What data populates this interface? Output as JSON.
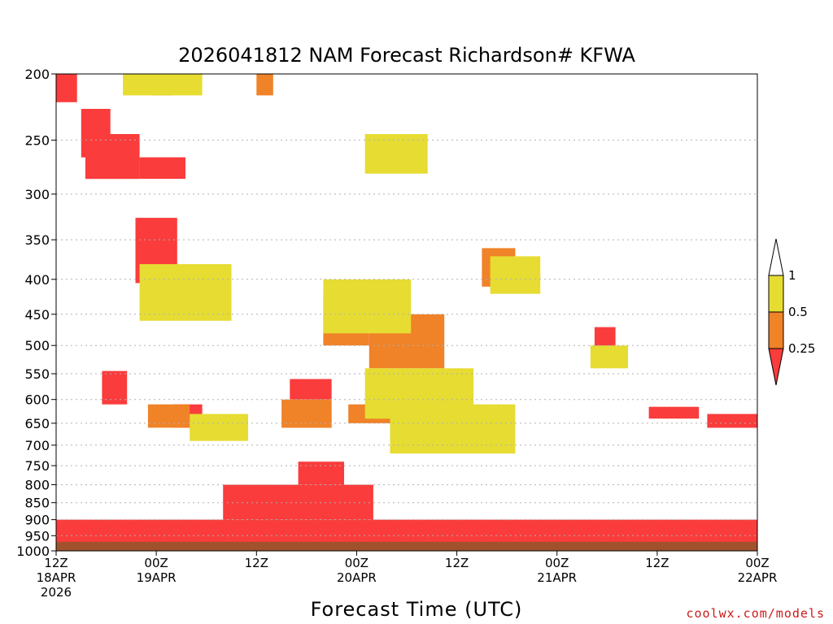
{
  "chart_data": {
    "type": "heatmap",
    "title": "2026041812 NAM Forecast Richardson# KFWA",
    "xlabel": "Forecast Time (UTC)",
    "ylabel": "",
    "y_axis": {
      "scale": "log",
      "inverted": true,
      "range": [
        1000,
        200
      ],
      "ticks": [
        200,
        250,
        300,
        350,
        400,
        450,
        500,
        550,
        600,
        650,
        700,
        750,
        800,
        850,
        900,
        950,
        1000
      ]
    },
    "x_axis": {
      "range": [
        0,
        84
      ],
      "ticks": [
        {
          "hour": 0,
          "labels": [
            "12Z",
            "18APR",
            "2026"
          ]
        },
        {
          "hour": 12,
          "labels": [
            "00Z",
            "19APR"
          ]
        },
        {
          "hour": 24,
          "labels": [
            "12Z"
          ]
        },
        {
          "hour": 36,
          "labels": [
            "00Z",
            "20APR"
          ]
        },
        {
          "hour": 48,
          "labels": [
            "12Z"
          ]
        },
        {
          "hour": 60,
          "labels": [
            "00Z",
            "21APR"
          ]
        },
        {
          "hour": 72,
          "labels": [
            "12Z"
          ]
        },
        {
          "hour": 84,
          "labels": [
            "00Z",
            "22APR"
          ]
        }
      ]
    },
    "grid": true,
    "colorbar": {
      "levels": [
        "1",
        "0.5",
        "0.25"
      ],
      "colors": {
        "above_1": "#ffffff",
        "0.5_to_1": "#e6dc32",
        "0.25_to_0.5": "#f08228",
        "below_0.25": "#fa3c3c"
      }
    },
    "ground_color": "#a0522d",
    "ground_top_hpa": 970,
    "regions": [
      {
        "class": "below_0.25",
        "x": [
          0.0,
          2.5
        ],
        "p": [
          200,
          220
        ]
      },
      {
        "class": "below_0.25",
        "x": [
          3.0,
          6.5
        ],
        "p": [
          225,
          265
        ]
      },
      {
        "class": "below_0.25",
        "x": [
          3.5,
          10.0
        ],
        "p": [
          245,
          285
        ]
      },
      {
        "class": "below_0.25",
        "x": [
          10.0,
          15.5
        ],
        "p": [
          265,
          285
        ]
      },
      {
        "class": "below_0.25",
        "x": [
          9.5,
          14.5
        ],
        "p": [
          325,
          405
        ]
      },
      {
        "class": "below_0.25",
        "x": [
          5.5,
          8.5
        ],
        "p": [
          545,
          610
        ]
      },
      {
        "class": "below_0.25",
        "x": [
          14.0,
          17.5
        ],
        "p": [
          610,
          660
        ]
      },
      {
        "class": "below_0.25",
        "x": [
          28.0,
          33.0
        ],
        "p": [
          560,
          600
        ]
      },
      {
        "class": "below_0.25",
        "x": [
          29.0,
          34.5
        ],
        "p": [
          740,
          800
        ]
      },
      {
        "class": "below_0.25",
        "x": [
          35.0,
          38.5
        ],
        "p": [
          440,
          475
        ]
      },
      {
        "class": "below_0.25",
        "x": [
          64.5,
          67.0
        ],
        "p": [
          470,
          505
        ]
      },
      {
        "class": "below_0.25",
        "x": [
          71.0,
          77.0
        ],
        "p": [
          615,
          640
        ]
      },
      {
        "class": "below_0.25",
        "x": [
          78.0,
          84.0
        ],
        "p": [
          630,
          660
        ]
      },
      {
        "class": "below_0.25",
        "x": [
          0.0,
          84.0
        ],
        "p": [
          900,
          975
        ]
      },
      {
        "class": "below_0.25",
        "x": [
          20.0,
          38.0
        ],
        "p": [
          800,
          900
        ]
      },
      {
        "class": "0.25_to_0.5",
        "x": [
          11.5,
          14.0
        ],
        "p": [
          200,
          215
        ]
      },
      {
        "class": "0.25_to_0.5",
        "x": [
          24.0,
          26.0
        ],
        "p": [
          200,
          215
        ]
      },
      {
        "class": "0.25_to_0.5",
        "x": [
          39.5,
          42.0
        ],
        "p": [
          255,
          270
        ]
      },
      {
        "class": "0.25_to_0.5",
        "x": [
          32.0,
          37.5
        ],
        "p": [
          420,
          500
        ]
      },
      {
        "class": "0.25_to_0.5",
        "x": [
          37.5,
          46.5
        ],
        "p": [
          450,
          540
        ]
      },
      {
        "class": "0.25_to_0.5",
        "x": [
          51.0,
          55.0
        ],
        "p": [
          360,
          410
        ]
      },
      {
        "class": "0.25_to_0.5",
        "x": [
          11.0,
          16.0
        ],
        "p": [
          610,
          660
        ]
      },
      {
        "class": "0.25_to_0.5",
        "x": [
          27.0,
          33.0
        ],
        "p": [
          600,
          660
        ]
      },
      {
        "class": "0.25_to_0.5",
        "x": [
          35.0,
          41.0
        ],
        "p": [
          610,
          650
        ]
      },
      {
        "class": "0.5_to_1",
        "x": [
          8.0,
          17.5
        ],
        "p": [
          200,
          215
        ]
      },
      {
        "class": "0.5_to_1",
        "x": [
          37.0,
          44.5
        ],
        "p": [
          245,
          280
        ]
      },
      {
        "class": "0.5_to_1",
        "x": [
          32.0,
          42.5
        ],
        "p": [
          400,
          480
        ]
      },
      {
        "class": "0.5_to_1",
        "x": [
          37.0,
          50.0
        ],
        "p": [
          540,
          640
        ]
      },
      {
        "class": "0.5_to_1",
        "x": [
          40.0,
          55.0
        ],
        "p": [
          610,
          720
        ]
      },
      {
        "class": "0.5_to_1",
        "x": [
          10.0,
          21.0
        ],
        "p": [
          380,
          460
        ]
      },
      {
        "class": "0.5_to_1",
        "x": [
          16.0,
          23.0
        ],
        "p": [
          630,
          690
        ]
      },
      {
        "class": "0.5_to_1",
        "x": [
          52.0,
          58.0
        ],
        "p": [
          370,
          420
        ]
      },
      {
        "class": "0.5_to_1",
        "x": [
          64.0,
          68.5
        ],
        "p": [
          500,
          540
        ]
      }
    ]
  },
  "labels": {
    "credit": "coolwx.com/models"
  }
}
